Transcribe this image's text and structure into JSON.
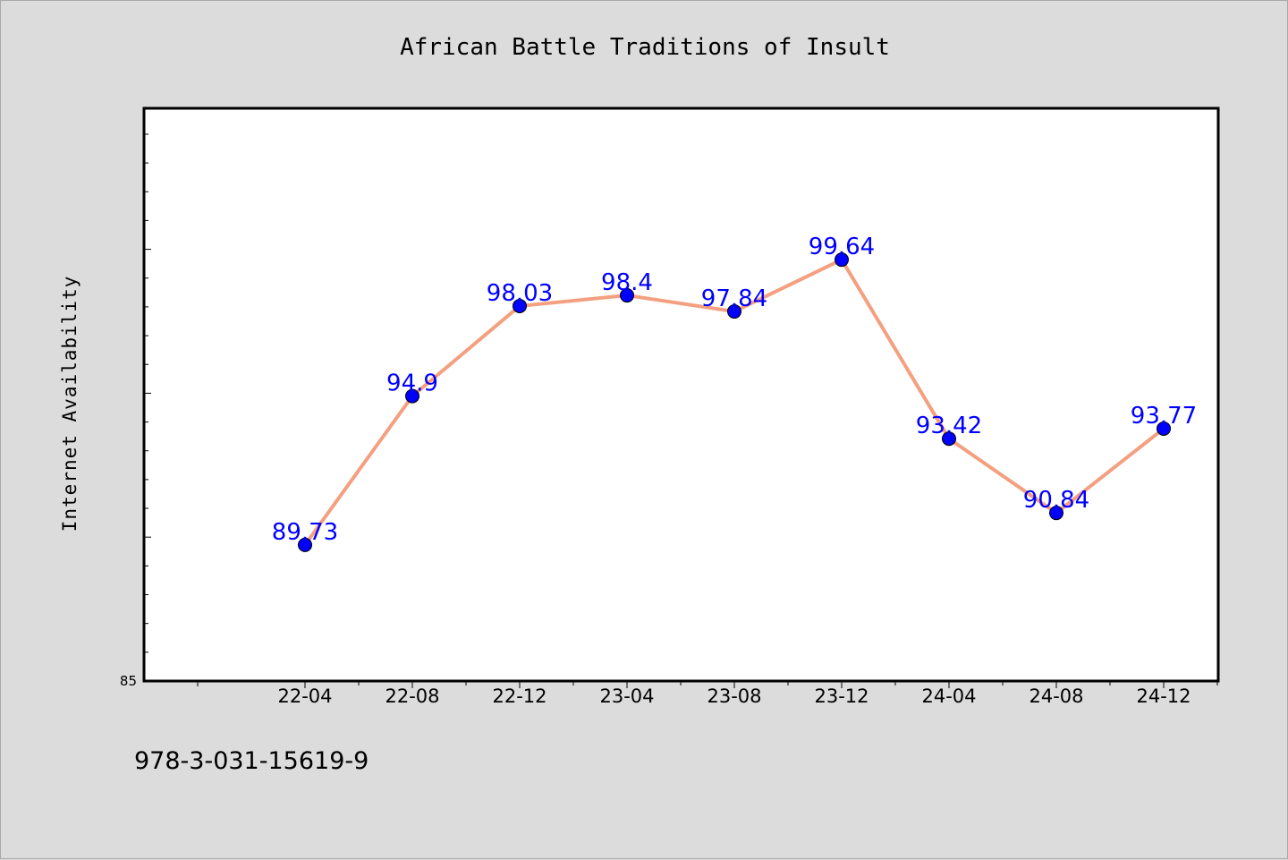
{
  "chart_data": {
    "type": "line",
    "title": "African Battle Traditions of Insult",
    "xlabel": "",
    "ylabel": "Internet Availability",
    "categories": [
      "22-04",
      "22-08",
      "22-12",
      "23-04",
      "23-08",
      "23-12",
      "24-04",
      "24-08",
      "24-12"
    ],
    "series": [
      {
        "values": [
          89.73,
          94.9,
          98.03,
          98.4,
          97.84,
          99.64,
          93.42,
          90.84,
          93.77
        ]
      }
    ],
    "data_labels": [
      "89.73",
      "94.9",
      "98.03",
      "98.4",
      "97.84",
      "99.64",
      "93.42",
      "90.84",
      "93.77"
    ],
    "y_tick_labels": [
      "85"
    ],
    "ylim": [
      85,
      104.9
    ],
    "grid": false,
    "colors": {
      "line": "#f4a080",
      "marker": "#0000ff",
      "label": "#0000ff"
    }
  },
  "footer": {
    "code": "978-3-031-15619-9"
  }
}
